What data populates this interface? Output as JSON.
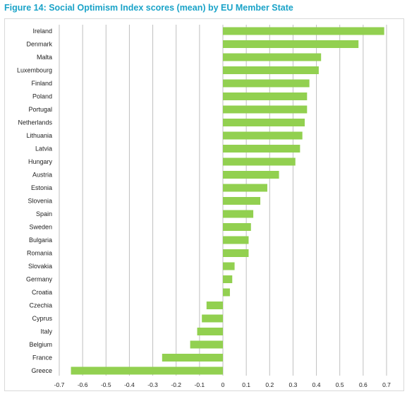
{
  "title": "Figure 14: Social Optimism Index scores (mean) by EU Member State",
  "colors": {
    "title": "#1aa3c8",
    "bar": "#92d050",
    "grid": "#bfbfbf",
    "frame": "#d9d9d9"
  },
  "chart_data": {
    "type": "bar",
    "orientation": "horizontal",
    "title": "Figure 14: Social Optimism Index scores (mean) by EU Member State",
    "xlabel": "",
    "ylabel": "",
    "xlim": [
      -0.7,
      0.7
    ],
    "grid": true,
    "legend": "none",
    "categories": [
      "Ireland",
      "Denmark",
      "Malta",
      "Luxembourg",
      "Finland",
      "Poland",
      "Portugal",
      "Netherlands",
      "Lithuania",
      "Latvia",
      "Hungary",
      "Austria",
      "Estonia",
      "Slovenia",
      "Spain",
      "Sweden",
      "Bulgaria",
      "Romania",
      "Slovakia",
      "Germany",
      "Croatia",
      "Czechia",
      "Cyprus",
      "Italy",
      "Belgium",
      "France",
      "Greece"
    ],
    "values": [
      0.69,
      0.58,
      0.42,
      0.41,
      0.37,
      0.36,
      0.36,
      0.35,
      0.34,
      0.33,
      0.31,
      0.24,
      0.19,
      0.16,
      0.13,
      0.12,
      0.11,
      0.11,
      0.05,
      0.04,
      0.03,
      -0.07,
      -0.09,
      -0.11,
      -0.14,
      -0.26,
      -0.65
    ],
    "xticks": [
      "-0.7",
      "-0.6",
      "-0.5",
      "-0.4",
      "-0.3",
      "-0.2",
      "-0.1",
      "0",
      "0.1",
      "0.2",
      "0.3",
      "0.4",
      "0.5",
      "0.6",
      "0.7"
    ]
  }
}
